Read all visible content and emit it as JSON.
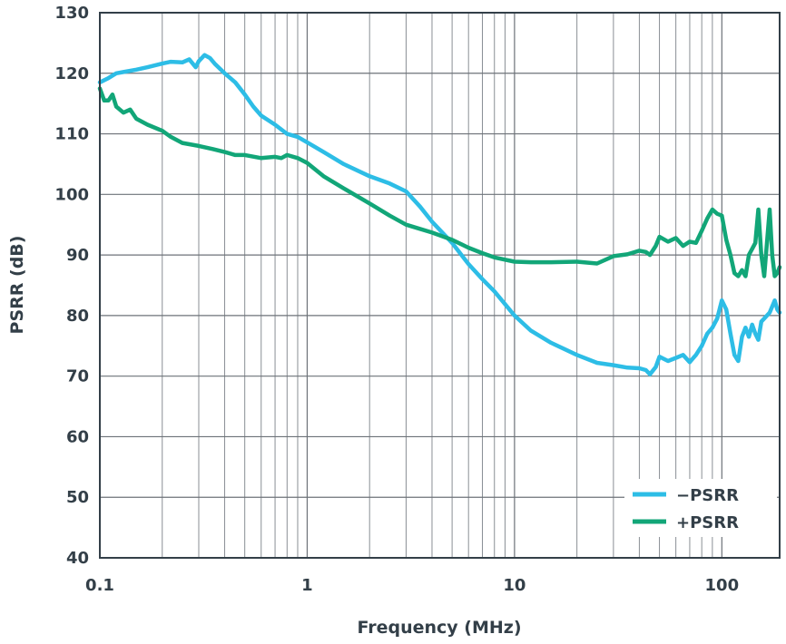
{
  "chart_data": {
    "type": "line",
    "xscale": "log",
    "xlabel": "Frequency (MHz)",
    "ylabel": "PSRR (dB)",
    "xlim": [
      0.1,
      190
    ],
    "ylim": [
      40,
      130
    ],
    "xticks": [
      {
        "value": 0.1,
        "label": "0.1"
      },
      {
        "value": 1,
        "label": "1"
      },
      {
        "value": 10,
        "label": "10"
      },
      {
        "value": 100,
        "label": "100"
      }
    ],
    "yticks": [
      {
        "value": 130,
        "label": "130"
      },
      {
        "value": 120,
        "label": "120"
      },
      {
        "value": 110,
        "label": "110"
      },
      {
        "value": 100,
        "label": "100"
      },
      {
        "value": 90,
        "label": "90"
      },
      {
        "value": 80,
        "label": "80"
      },
      {
        "value": 70,
        "label": "70"
      },
      {
        "value": 60,
        "label": "60"
      },
      {
        "value": 50,
        "label": "50"
      },
      {
        "value": 40,
        "label": "40"
      }
    ],
    "grid": true,
    "legend_position": "bottom-right",
    "series": [
      {
        "name": "−PSRR",
        "color": "#2dbde6",
        "x": [
          0.1,
          0.11,
          0.12,
          0.13,
          0.15,
          0.17,
          0.2,
          0.22,
          0.25,
          0.27,
          0.29,
          0.3,
          0.32,
          0.34,
          0.36,
          0.4,
          0.45,
          0.5,
          0.55,
          0.6,
          0.7,
          0.8,
          0.9,
          1.0,
          1.2,
          1.5,
          2.0,
          2.5,
          3.0,
          3.5,
          4.0,
          5.0,
          6.0,
          7.0,
          8.0,
          10,
          12,
          15,
          20,
          25,
          30,
          35,
          40,
          43,
          45,
          48,
          50,
          55,
          60,
          65,
          70,
          75,
          80,
          85,
          90,
          95,
          100,
          105,
          110,
          115,
          120,
          125,
          130,
          135,
          140,
          145,
          150,
          155,
          160,
          170,
          180,
          185,
          190
        ],
        "values": [
          118.5,
          119.2,
          120,
          120.2,
          120.6,
          121,
          121.6,
          121.9,
          121.8,
          122.3,
          121,
          122,
          123,
          122.5,
          121.5,
          120,
          118.5,
          116.5,
          114.5,
          113,
          111.5,
          110,
          109.5,
          108.6,
          107,
          105,
          103,
          101.8,
          100.5,
          98,
          95.5,
          92,
          88.5,
          86,
          84,
          80,
          77.5,
          75.5,
          73.5,
          72.2,
          71.8,
          71.4,
          71.3,
          71.0,
          70.3,
          71.5,
          73.2,
          72.5,
          73.0,
          73.5,
          72.3,
          73.5,
          75,
          77,
          78,
          79.5,
          82.5,
          81,
          77,
          73.5,
          72.5,
          76.5,
          78,
          76.5,
          78.5,
          77,
          76,
          79,
          79.5,
          80.5,
          82.5,
          81,
          80.5
        ]
      },
      {
        "name": "+PSRR",
        "color": "#12a678",
        "x": [
          0.1,
          0.105,
          0.11,
          0.115,
          0.12,
          0.13,
          0.14,
          0.15,
          0.17,
          0.2,
          0.22,
          0.25,
          0.3,
          0.35,
          0.4,
          0.45,
          0.5,
          0.6,
          0.7,
          0.75,
          0.8,
          0.9,
          1.0,
          1.2,
          1.5,
          2.0,
          2.5,
          3.0,
          4.0,
          5.0,
          6.0,
          7.0,
          8.0,
          10,
          12,
          15,
          20,
          25,
          30,
          35,
          40,
          43,
          45,
          48,
          50,
          55,
          60,
          65,
          70,
          75,
          80,
          85,
          90,
          95,
          100,
          105,
          110,
          115,
          120,
          125,
          130,
          135,
          140,
          145,
          150,
          155,
          160,
          165,
          170,
          175,
          180,
          185,
          190
        ],
        "values": [
          117.5,
          115.5,
          115.5,
          116.5,
          114.5,
          113.5,
          114,
          112.5,
          111.5,
          110.5,
          109.5,
          108.5,
          108,
          107.5,
          107,
          106.5,
          106.5,
          106,
          106.2,
          106,
          106.5,
          106,
          105.2,
          103,
          101,
          98.5,
          96.5,
          95,
          93.7,
          92.5,
          91.2,
          90.3,
          89.6,
          88.9,
          88.8,
          88.8,
          88.9,
          88.6,
          89.8,
          90.1,
          90.7,
          90.5,
          90.0,
          91.5,
          93,
          92.2,
          92.8,
          91.5,
          92.2,
          92.0,
          94,
          96,
          97.5,
          96.8,
          96.5,
          92.5,
          90,
          87,
          86.5,
          87.5,
          86.5,
          90,
          91,
          92,
          97.5,
          90,
          86.5,
          92,
          97.5,
          90,
          86.5,
          87,
          88
        ]
      }
    ]
  }
}
